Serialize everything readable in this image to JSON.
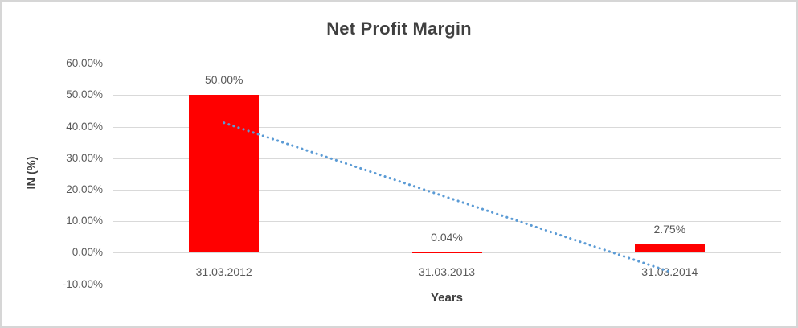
{
  "chart_data": {
    "type": "bar",
    "title": "Net Profit Margin",
    "xlabel": "Years",
    "ylabel": "IN (%)",
    "categories": [
      "31.03.2012",
      "31.03.2013",
      "31.03.2014"
    ],
    "values": [
      50.0,
      0.04,
      2.75
    ],
    "data_labels": [
      "50.00%",
      "0.04%",
      "2.75%"
    ],
    "ylim": [
      -10,
      60
    ],
    "ytick_interval": 10,
    "ytick_labels": [
      "60.00%",
      "50.00%",
      "40.00%",
      "30.00%",
      "20.00%",
      "10.00%",
      "0.00%",
      "-10.00%"
    ],
    "grid": true,
    "legend": false,
    "colors": {
      "bar": "#ff0000",
      "gridline": "#d9d9d9",
      "tick_text": "#595959",
      "title_text": "#404040",
      "trendline": "#5b9bd5"
    },
    "trendline": {
      "type": "linear",
      "style": "dotted",
      "color": "#5b9bd5",
      "start_value": 41.2,
      "end_value": -6.0
    }
  }
}
